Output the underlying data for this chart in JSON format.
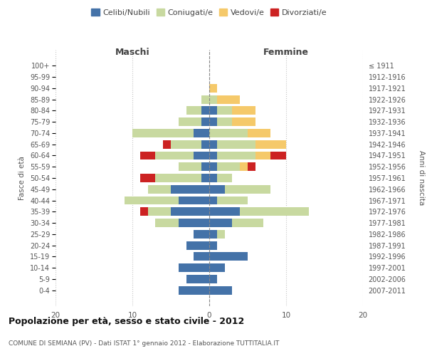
{
  "age_groups": [
    "100+",
    "95-99",
    "90-94",
    "85-89",
    "80-84",
    "75-79",
    "70-74",
    "65-69",
    "60-64",
    "55-59",
    "50-54",
    "45-49",
    "40-44",
    "35-39",
    "30-34",
    "25-29",
    "20-24",
    "15-19",
    "10-14",
    "5-9",
    "0-4"
  ],
  "birth_years": [
    "≤ 1911",
    "1912-1916",
    "1917-1921",
    "1922-1926",
    "1927-1931",
    "1932-1936",
    "1937-1941",
    "1942-1946",
    "1947-1951",
    "1952-1956",
    "1957-1961",
    "1962-1966",
    "1967-1971",
    "1972-1976",
    "1977-1981",
    "1982-1986",
    "1987-1991",
    "1992-1996",
    "1997-2001",
    "2002-2006",
    "2007-2011"
  ],
  "maschi": {
    "celibi": [
      0,
      0,
      0,
      0,
      1,
      1,
      2,
      1,
      2,
      1,
      1,
      5,
      4,
      5,
      4,
      2,
      3,
      2,
      4,
      3,
      4
    ],
    "coniugati": [
      0,
      0,
      0,
      1,
      2,
      3,
      8,
      4,
      5,
      3,
      6,
      3,
      7,
      3,
      3,
      0,
      0,
      0,
      0,
      0,
      0
    ],
    "vedovi": [
      0,
      0,
      0,
      0,
      0,
      0,
      0,
      0,
      0,
      0,
      0,
      0,
      0,
      0,
      0,
      0,
      0,
      0,
      0,
      0,
      0
    ],
    "divorziati": [
      0,
      0,
      0,
      0,
      0,
      0,
      0,
      1,
      2,
      0,
      2,
      0,
      0,
      1,
      0,
      0,
      0,
      0,
      0,
      0,
      0
    ]
  },
  "femmine": {
    "nubili": [
      0,
      0,
      0,
      0,
      1,
      1,
      0,
      1,
      1,
      1,
      1,
      2,
      1,
      4,
      3,
      1,
      1,
      5,
      2,
      1,
      3
    ],
    "coniugate": [
      0,
      0,
      0,
      1,
      2,
      2,
      5,
      5,
      5,
      3,
      2,
      6,
      4,
      9,
      4,
      1,
      0,
      0,
      0,
      0,
      0
    ],
    "vedove": [
      0,
      0,
      1,
      3,
      3,
      3,
      3,
      4,
      2,
      1,
      0,
      0,
      0,
      0,
      0,
      0,
      0,
      0,
      0,
      0,
      0
    ],
    "divorziate": [
      0,
      0,
      0,
      0,
      0,
      0,
      0,
      0,
      2,
      1,
      0,
      0,
      0,
      0,
      0,
      0,
      0,
      0,
      0,
      0,
      0
    ]
  },
  "colors": {
    "celibi_nubili": "#4472a8",
    "coniugati": "#c8d9a0",
    "vedovi": "#f5c96a",
    "divorziati": "#cc2222"
  },
  "xlim": 20,
  "title": "Popolazione per età, sesso e stato civile - 2012",
  "subtitle": "COMUNE DI SEMIANA (PV) - Dati ISTAT 1° gennaio 2012 - Elaborazione TUTTITALIA.IT",
  "ylabel": "Fasce di età",
  "right_ylabel": "Anni di nascita",
  "legend_labels": [
    "Celibi/Nubili",
    "Coniugati/e",
    "Vedovi/e",
    "Divorziati/e"
  ],
  "maschi_label": "Maschi",
  "femmine_label": "Femmine"
}
